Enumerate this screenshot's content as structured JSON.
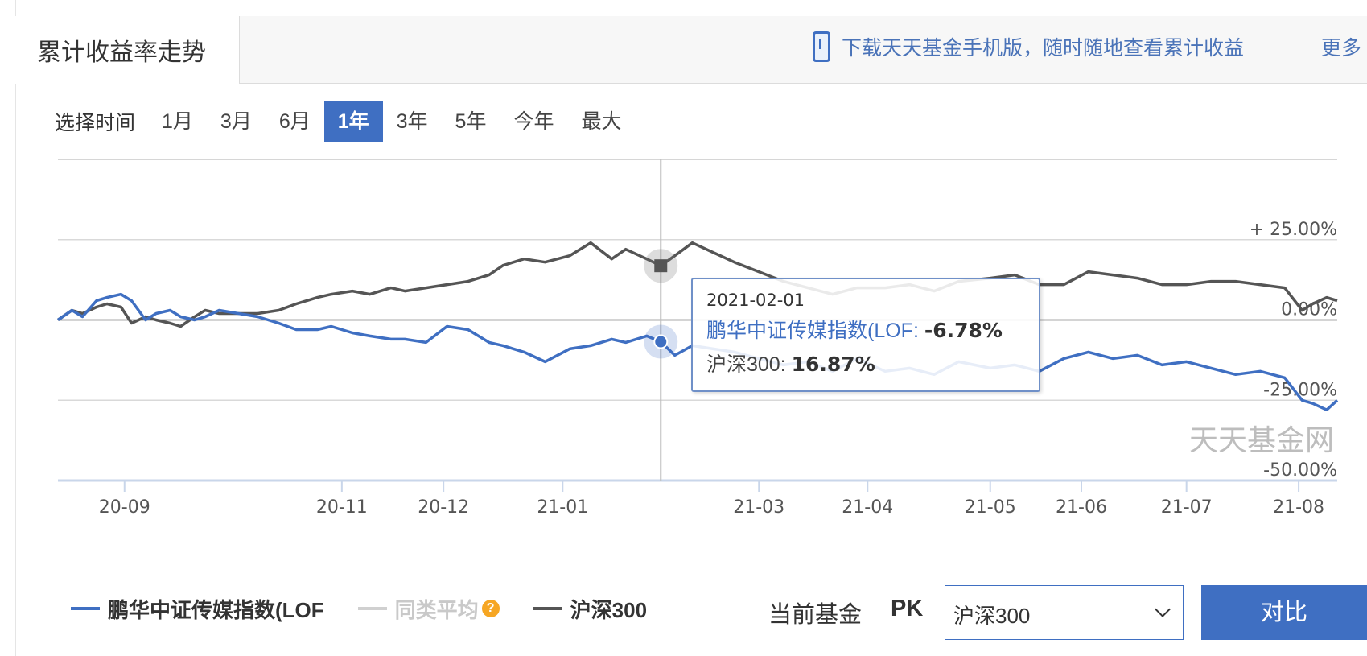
{
  "header": {
    "tab_title": "累计收益率走势",
    "promo_text": "下载天天基金手机版，随时随地查看累计收益",
    "more_label": "更多"
  },
  "range": {
    "label": "选择时间",
    "options": [
      "1月",
      "3月",
      "6月",
      "1年",
      "3年",
      "5年",
      "今年",
      "最大"
    ],
    "selected": "1年"
  },
  "tooltip": {
    "date": "2021-02-01",
    "fund_label": "鹏华中证传媒指数(LOF:",
    "fund_value": "-6.78%",
    "index_label": "沪深300:",
    "index_value": "16.87%"
  },
  "watermark": "天天基金网",
  "legend": {
    "fund": "鹏华中证传媒指数(LOF",
    "peer_avg": "同类平均",
    "index": "沪深300"
  },
  "compare": {
    "current_label": "当前基金",
    "pk_label": "PK",
    "selected_index": "沪深300",
    "button_label": "对比"
  },
  "colors": {
    "fund": "#3f6fc2",
    "index": "#555555",
    "peer_avg": "#d0d0d0",
    "accent": "#3f6fc2"
  },
  "chart_data": {
    "type": "line",
    "ylim": [
      -50,
      50
    ],
    "y_tick_labels": [
      "+ 25.00%",
      "0.00%",
      "-25.00%",
      "-50.00%"
    ],
    "y_tick_values": [
      25,
      0,
      -25,
      -50
    ],
    "x_tick_labels": [
      "20-09",
      "20-11",
      "20-12",
      "21-01",
      "21-03",
      "21-04",
      "21-05",
      "21-06",
      "21-07",
      "21-08"
    ],
    "x_tick_dates": [
      "2020-09-01",
      "2020-11-02",
      "2020-12-01",
      "2021-01-04",
      "2021-03-01",
      "2021-04-01",
      "2021-05-06",
      "2021-06-01",
      "2021-07-01",
      "2021-08-02"
    ],
    "x_range": [
      "2020-08-13",
      "2021-08-13"
    ],
    "crosshair_date": "2021-02-01",
    "grid": true,
    "legend_position": "bottom",
    "series": [
      {
        "name": "鹏华中证传媒指数(LOF",
        "x": [
          "2020-08-13",
          "2020-08-17",
          "2020-08-20",
          "2020-08-24",
          "2020-08-27",
          "2020-08-31",
          "2020-09-03",
          "2020-09-07",
          "2020-09-10",
          "2020-09-14",
          "2020-09-17",
          "2020-09-21",
          "2020-09-24",
          "2020-09-28",
          "2020-10-09",
          "2020-10-15",
          "2020-10-20",
          "2020-10-26",
          "2020-10-30",
          "2020-11-05",
          "2020-11-10",
          "2020-11-16",
          "2020-11-20",
          "2020-11-26",
          "2020-12-02",
          "2020-12-08",
          "2020-12-14",
          "2020-12-18",
          "2020-12-24",
          "2020-12-30",
          "2021-01-06",
          "2021-01-12",
          "2021-01-18",
          "2021-01-22",
          "2021-01-28",
          "2021-02-01",
          "2021-02-05",
          "2021-02-10",
          "2021-02-22",
          "2021-03-01",
          "2021-03-08",
          "2021-03-15",
          "2021-03-22",
          "2021-03-29",
          "2021-04-06",
          "2021-04-13",
          "2021-04-20",
          "2021-04-27",
          "2021-05-06",
          "2021-05-13",
          "2021-05-20",
          "2021-05-27",
          "2021-06-03",
          "2021-06-10",
          "2021-06-17",
          "2021-06-24",
          "2021-07-01",
          "2021-07-08",
          "2021-07-15",
          "2021-07-22",
          "2021-07-29",
          "2021-08-03",
          "2021-08-06",
          "2021-08-10",
          "2021-08-13"
        ],
        "values": [
          0,
          3,
          1,
          6,
          7,
          8,
          6,
          0,
          2,
          3,
          1,
          0,
          1,
          3,
          1,
          -1,
          -3,
          -3,
          -2,
          -4,
          -5,
          -6,
          -6,
          -7,
          -2,
          -3,
          -7,
          -8,
          -10,
          -13,
          -9,
          -8,
          -6,
          -7,
          -5,
          -6.78,
          -11,
          -8,
          -10,
          -12,
          -14,
          -13,
          -16,
          -12,
          -16,
          -15,
          -17,
          -13,
          -15,
          -14,
          -16,
          -12,
          -10,
          -12,
          -11,
          -14,
          -13,
          -15,
          -17,
          -16,
          -18,
          -25,
          -26,
          -28,
          -25
        ]
      },
      {
        "name": "沪深300",
        "x": [
          "2020-08-13",
          "2020-08-17",
          "2020-08-20",
          "2020-08-24",
          "2020-08-27",
          "2020-08-31",
          "2020-09-03",
          "2020-09-07",
          "2020-09-10",
          "2020-09-14",
          "2020-09-17",
          "2020-09-21",
          "2020-09-24",
          "2020-09-28",
          "2020-10-09",
          "2020-10-15",
          "2020-10-20",
          "2020-10-26",
          "2020-10-30",
          "2020-11-05",
          "2020-11-10",
          "2020-11-16",
          "2020-11-20",
          "2020-11-26",
          "2020-12-02",
          "2020-12-08",
          "2020-12-14",
          "2020-12-18",
          "2020-12-24",
          "2020-12-30",
          "2021-01-06",
          "2021-01-12",
          "2021-01-18",
          "2021-01-22",
          "2021-01-28",
          "2021-02-01",
          "2021-02-05",
          "2021-02-10",
          "2021-02-22",
          "2021-03-01",
          "2021-03-08",
          "2021-03-15",
          "2021-03-22",
          "2021-03-29",
          "2021-04-06",
          "2021-04-13",
          "2021-04-20",
          "2021-04-27",
          "2021-05-06",
          "2021-05-13",
          "2021-05-20",
          "2021-05-27",
          "2021-06-03",
          "2021-06-10",
          "2021-06-17",
          "2021-06-24",
          "2021-07-01",
          "2021-07-08",
          "2021-07-15",
          "2021-07-22",
          "2021-07-29",
          "2021-08-03",
          "2021-08-06",
          "2021-08-10",
          "2021-08-13"
        ],
        "values": [
          0,
          3,
          2,
          4,
          5,
          4,
          -1,
          1,
          0,
          -1,
          -2,
          1,
          3,
          2,
          2,
          3,
          5,
          7,
          8,
          9,
          8,
          10,
          9,
          10,
          11,
          12,
          14,
          17,
          19,
          18,
          20,
          24,
          19,
          22,
          19,
          16.87,
          20,
          24,
          18,
          15,
          12,
          10,
          8,
          10,
          10,
          11,
          9,
          12,
          13,
          14,
          11,
          11,
          15,
          14,
          13,
          11,
          11,
          12,
          12,
          11,
          10,
          3,
          5,
          7,
          6
        ]
      }
    ]
  }
}
